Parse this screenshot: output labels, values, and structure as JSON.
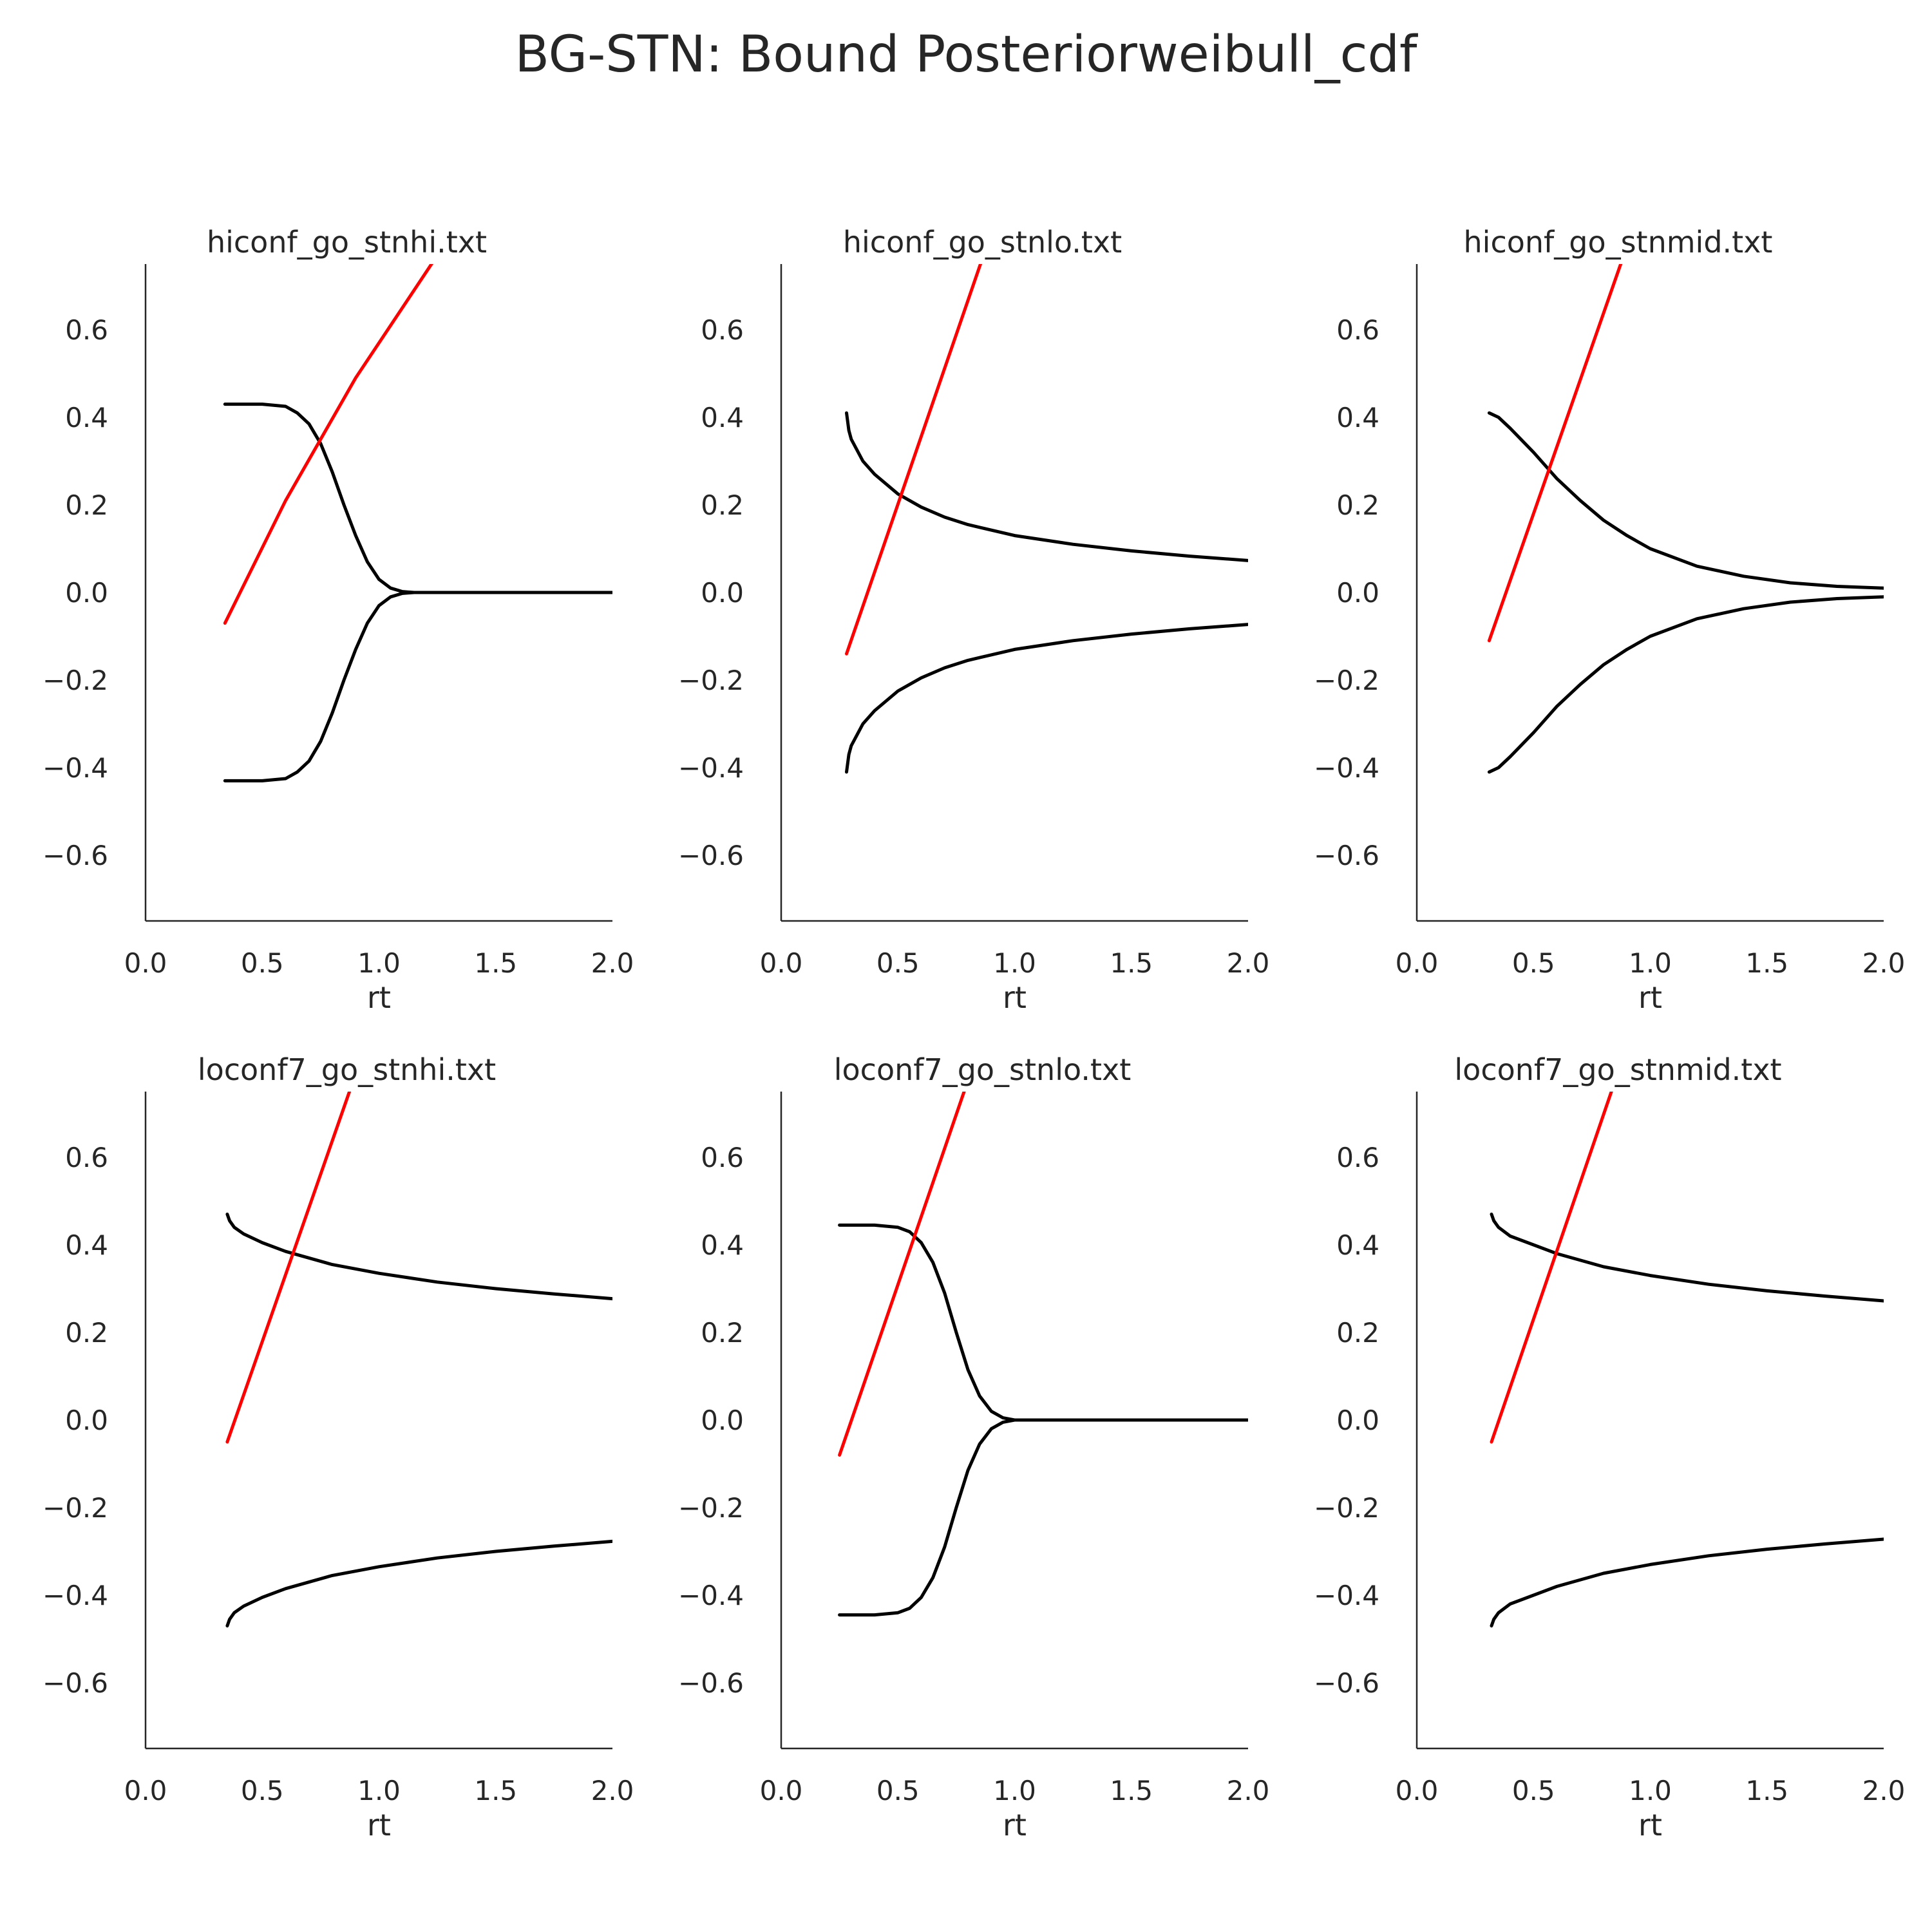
{
  "figure": {
    "title": "BG-STN: Bound Posteriorweibull_cdf"
  },
  "colors": {
    "boundary": "#000000",
    "drift": "#ff0000",
    "axis": "#262626",
    "background": "#ffffff"
  },
  "chart_data": [
    {
      "type": "line",
      "title": "hiconf_go_stnhi.txt",
      "xlabel": "rt",
      "ylabel": "",
      "xlim": [
        0.0,
        2.0
      ],
      "ylim": [
        -0.75,
        0.75
      ],
      "xticks": [
        "0.0",
        "0.5",
        "1.0",
        "1.5",
        "2.0"
      ],
      "yticks": [
        "−0.6",
        "−0.4",
        "−0.2",
        "0.0",
        "0.2",
        "0.4",
        "0.6"
      ],
      "grid": false,
      "series": [
        {
          "color": "#000000",
          "x": [
            0.34,
            0.5,
            0.6,
            0.65,
            0.7,
            0.75,
            0.8,
            0.85,
            0.9,
            0.95,
            1.0,
            1.05,
            1.1,
            1.15,
            1.2,
            1.5,
            2.0
          ],
          "y": [
            0.43,
            0.43,
            0.425,
            0.41,
            0.385,
            0.34,
            0.275,
            0.2,
            0.13,
            0.07,
            0.03,
            0.01,
            0.002,
            0.0,
            0.0,
            0.0,
            0.0
          ]
        },
        {
          "color": "#000000",
          "x": [
            0.34,
            0.5,
            0.6,
            0.65,
            0.7,
            0.75,
            0.8,
            0.85,
            0.9,
            0.95,
            1.0,
            1.05,
            1.1,
            1.15,
            1.2,
            1.5,
            2.0
          ],
          "y": [
            -0.43,
            -0.43,
            -0.425,
            -0.41,
            -0.385,
            -0.34,
            -0.275,
            -0.2,
            -0.13,
            -0.07,
            -0.03,
            -0.01,
            -0.002,
            0.0,
            0.0,
            0.0,
            0.0
          ]
        },
        {
          "color": "#ff0000",
          "x": [
            0.34,
            0.6,
            0.9,
            1.25
          ],
          "y": [
            -0.07,
            0.21,
            0.49,
            0.77
          ]
        }
      ]
    },
    {
      "type": "line",
      "title": "hiconf_go_stnlo.txt",
      "xlabel": "rt",
      "ylabel": "",
      "xlim": [
        0.0,
        2.0
      ],
      "ylim": [
        -0.75,
        0.75
      ],
      "xticks": [
        "0.0",
        "0.5",
        "1.0",
        "1.5",
        "2.0"
      ],
      "yticks": [
        "−0.6",
        "−0.4",
        "−0.2",
        "0.0",
        "0.2",
        "0.4",
        "0.6"
      ],
      "grid": false,
      "series": [
        {
          "color": "#000000",
          "x": [
            0.28,
            0.29,
            0.3,
            0.35,
            0.4,
            0.5,
            0.6,
            0.7,
            0.8,
            1.0,
            1.25,
            1.5,
            1.75,
            2.0
          ],
          "y": [
            0.41,
            0.37,
            0.35,
            0.3,
            0.27,
            0.225,
            0.195,
            0.172,
            0.155,
            0.13,
            0.11,
            0.095,
            0.083,
            0.073
          ]
        },
        {
          "color": "#000000",
          "x": [
            0.28,
            0.29,
            0.3,
            0.35,
            0.4,
            0.5,
            0.6,
            0.7,
            0.8,
            1.0,
            1.25,
            1.5,
            1.75,
            2.0
          ],
          "y": [
            -0.41,
            -0.37,
            -0.35,
            -0.3,
            -0.27,
            -0.225,
            -0.195,
            -0.172,
            -0.155,
            -0.13,
            -0.11,
            -0.095,
            -0.083,
            -0.073
          ]
        },
        {
          "color": "#ff0000",
          "x": [
            0.28,
            0.86
          ],
          "y": [
            -0.14,
            0.76
          ]
        }
      ]
    },
    {
      "type": "line",
      "title": "hiconf_go_stnmid.txt",
      "xlabel": "rt",
      "ylabel": "",
      "xlim": [
        0.0,
        2.0
      ],
      "ylim": [
        -0.75,
        0.75
      ],
      "xticks": [
        "0.0",
        "0.5",
        "1.0",
        "1.5",
        "2.0"
      ],
      "yticks": [
        "−0.6",
        "−0.4",
        "−0.2",
        "0.0",
        "0.2",
        "0.4",
        "0.6"
      ],
      "grid": false,
      "series": [
        {
          "color": "#000000",
          "x": [
            0.31,
            0.35,
            0.4,
            0.5,
            0.6,
            0.7,
            0.8,
            0.9,
            1.0,
            1.2,
            1.4,
            1.6,
            1.8,
            2.0
          ],
          "y": [
            0.41,
            0.4,
            0.375,
            0.32,
            0.26,
            0.21,
            0.165,
            0.13,
            0.1,
            0.06,
            0.037,
            0.022,
            0.014,
            0.01
          ]
        },
        {
          "color": "#000000",
          "x": [
            0.31,
            0.35,
            0.4,
            0.5,
            0.6,
            0.7,
            0.8,
            0.9,
            1.0,
            1.2,
            1.4,
            1.6,
            1.8,
            2.0
          ],
          "y": [
            -0.41,
            -0.4,
            -0.375,
            -0.32,
            -0.26,
            -0.21,
            -0.165,
            -0.13,
            -0.1,
            -0.06,
            -0.037,
            -0.022,
            -0.014,
            -0.01
          ]
        },
        {
          "color": "#ff0000",
          "x": [
            0.31,
            0.88
          ],
          "y": [
            -0.11,
            0.76
          ]
        }
      ]
    },
    {
      "type": "line",
      "title": "loconf7_go_stnhi.txt",
      "xlabel": "rt",
      "ylabel": "",
      "xlim": [
        0.0,
        2.0
      ],
      "ylim": [
        -0.75,
        0.75
      ],
      "xticks": [
        "0.0",
        "0.5",
        "1.0",
        "1.5",
        "2.0"
      ],
      "yticks": [
        "−0.6",
        "−0.4",
        "−0.2",
        "0.0",
        "0.2",
        "0.4",
        "0.6"
      ],
      "grid": false,
      "series": [
        {
          "color": "#000000",
          "x": [
            0.35,
            0.36,
            0.38,
            0.42,
            0.5,
            0.6,
            0.8,
            1.0,
            1.25,
            1.5,
            1.75,
            2.0
          ],
          "y": [
            0.47,
            0.455,
            0.44,
            0.425,
            0.405,
            0.385,
            0.355,
            0.335,
            0.315,
            0.3,
            0.288,
            0.277
          ]
        },
        {
          "color": "#000000",
          "x": [
            0.35,
            0.36,
            0.38,
            0.42,
            0.5,
            0.6,
            0.8,
            1.0,
            1.25,
            1.5,
            1.75,
            2.0
          ],
          "y": [
            -0.47,
            -0.455,
            -0.44,
            -0.425,
            -0.405,
            -0.385,
            -0.355,
            -0.335,
            -0.315,
            -0.3,
            -0.288,
            -0.277
          ]
        },
        {
          "color": "#ff0000",
          "x": [
            0.35,
            0.88
          ],
          "y": [
            -0.05,
            0.76
          ]
        }
      ]
    },
    {
      "type": "line",
      "title": "loconf7_go_stnlo.txt",
      "xlabel": "rt",
      "ylabel": "",
      "xlim": [
        0.0,
        2.0
      ],
      "ylim": [
        -0.75,
        0.75
      ],
      "xticks": [
        "0.0",
        "0.5",
        "1.0",
        "1.5",
        "2.0"
      ],
      "yticks": [
        "−0.6",
        "−0.4",
        "−0.2",
        "0.0",
        "0.2",
        "0.4",
        "0.6"
      ],
      "grid": false,
      "series": [
        {
          "color": "#000000",
          "x": [
            0.25,
            0.4,
            0.5,
            0.55,
            0.6,
            0.65,
            0.7,
            0.75,
            0.8,
            0.85,
            0.9,
            0.95,
            1.0,
            1.1,
            1.5,
            2.0
          ],
          "y": [
            0.445,
            0.445,
            0.44,
            0.43,
            0.405,
            0.36,
            0.29,
            0.2,
            0.115,
            0.055,
            0.02,
            0.005,
            0.0,
            0.0,
            0.0,
            0.0
          ]
        },
        {
          "color": "#000000",
          "x": [
            0.25,
            0.4,
            0.5,
            0.55,
            0.6,
            0.65,
            0.7,
            0.75,
            0.8,
            0.85,
            0.9,
            0.95,
            1.0,
            1.1,
            1.5,
            2.0
          ],
          "y": [
            -0.445,
            -0.445,
            -0.44,
            -0.43,
            -0.405,
            -0.36,
            -0.29,
            -0.2,
            -0.115,
            -0.055,
            -0.02,
            -0.005,
            0.0,
            0.0,
            0.0,
            0.0
          ]
        },
        {
          "color": "#ff0000",
          "x": [
            0.25,
            0.79
          ],
          "y": [
            -0.08,
            0.76
          ]
        }
      ]
    },
    {
      "type": "line",
      "title": "loconf7_go_stnmid.txt",
      "xlabel": "rt",
      "ylabel": "",
      "xlim": [
        0.0,
        2.0
      ],
      "ylim": [
        -0.75,
        0.75
      ],
      "xticks": [
        "0.0",
        "0.5",
        "1.0",
        "1.5",
        "2.0"
      ],
      "yticks": [
        "−0.6",
        "−0.4",
        "−0.2",
        "0.0",
        "0.2",
        "0.4",
        "0.6"
      ],
      "grid": false,
      "series": [
        {
          "color": "#000000",
          "x": [
            0.32,
            0.33,
            0.35,
            0.4,
            0.5,
            0.6,
            0.8,
            1.0,
            1.25,
            1.5,
            1.75,
            2.0
          ],
          "y": [
            0.47,
            0.455,
            0.44,
            0.42,
            0.4,
            0.38,
            0.35,
            0.33,
            0.31,
            0.295,
            0.283,
            0.272
          ]
        },
        {
          "color": "#000000",
          "x": [
            0.32,
            0.33,
            0.35,
            0.4,
            0.5,
            0.6,
            0.8,
            1.0,
            1.25,
            1.5,
            1.75,
            2.0
          ],
          "y": [
            -0.47,
            -0.455,
            -0.44,
            -0.42,
            -0.4,
            -0.38,
            -0.35,
            -0.33,
            -0.31,
            -0.295,
            -0.283,
            -0.272
          ]
        },
        {
          "color": "#ff0000",
          "x": [
            0.32,
            0.84
          ],
          "y": [
            -0.05,
            0.76
          ]
        }
      ]
    }
  ]
}
